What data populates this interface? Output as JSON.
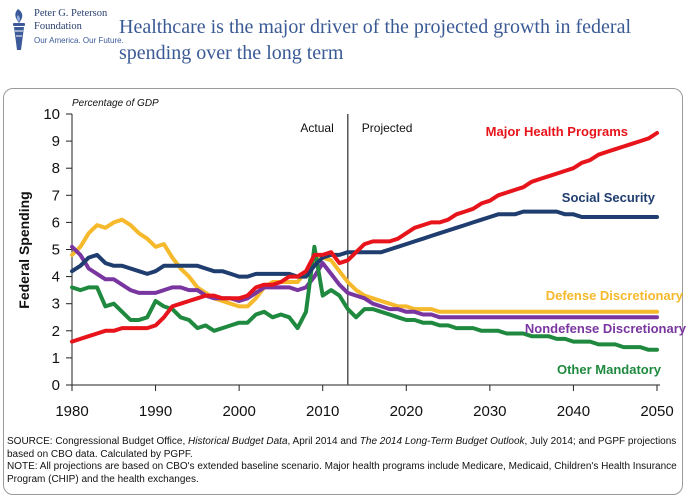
{
  "header": {
    "logo_name": "Peter G. Peterson",
    "logo_sub": "Foundation",
    "logo_tagline": "Our America. Our Future.",
    "title": "Healthcare is the major driver of the projected growth in federal spending over the long term"
  },
  "footer": {
    "source_prefix": "SOURCE: Congressional Budget Office, ",
    "source_title1": "Historical Budget Data",
    "source_mid": ", April 2014 and ",
    "source_title2": "The 2014 Long-Term Budget Outlook",
    "source_suffix": ", July 2014; and PGPF projections based on CBO data. Calculated by PGPF.",
    "note": "NOTE: All projections are based on CBO's extended baseline scenario. Major health programs include Medicare, Medicaid, Children's Health Insurance Program (CHIP) and the health exchanges."
  },
  "colors": {
    "health": "#e8141b",
    "social": "#1f3d6e",
    "defense": "#f5b92b",
    "nondefense": "#7a36a0",
    "other": "#1f8a3f",
    "title": "#3a5a95"
  },
  "chart_data": {
    "type": "line",
    "title": "Healthcare is the major driver of the projected growth in federal spending over the long term",
    "ylabel": "Federal Spending",
    "unit_label": "Percentage of GDP",
    "xlabel": "",
    "xlim": [
      1980,
      2050
    ],
    "ylim": [
      0,
      10
    ],
    "xticks": [
      1980,
      1990,
      2000,
      2010,
      2020,
      2030,
      2040,
      2050
    ],
    "yticks": [
      0,
      1,
      2,
      3,
      4,
      5,
      6,
      7,
      8,
      9,
      10
    ],
    "grid": false,
    "divider_year": 2013,
    "annotations": [
      "Actual",
      "Projected"
    ],
    "series": [
      {
        "name": "Major Health Programs",
        "color_key": "health",
        "x": [
          1980,
          1981,
          1982,
          1983,
          1984,
          1985,
          1986,
          1987,
          1988,
          1989,
          1990,
          1991,
          1992,
          1993,
          1994,
          1995,
          1996,
          1997,
          1998,
          1999,
          2000,
          2001,
          2002,
          2003,
          2004,
          2005,
          2006,
          2007,
          2008,
          2009,
          2010,
          2011,
          2012,
          2013,
          2014,
          2015,
          2016,
          2017,
          2018,
          2019,
          2020,
          2021,
          2022,
          2023,
          2024,
          2025,
          2026,
          2027,
          2028,
          2029,
          2030,
          2031,
          2032,
          2033,
          2034,
          2035,
          2036,
          2037,
          2038,
          2039,
          2040,
          2041,
          2042,
          2043,
          2044,
          2045,
          2046,
          2047,
          2048,
          2049,
          2050
        ],
        "values": [
          1.6,
          1.7,
          1.8,
          1.9,
          2.0,
          2.0,
          2.1,
          2.1,
          2.1,
          2.1,
          2.2,
          2.5,
          2.9,
          3.0,
          3.1,
          3.2,
          3.3,
          3.3,
          3.2,
          3.2,
          3.2,
          3.3,
          3.6,
          3.7,
          3.7,
          3.8,
          4.0,
          4.0,
          4.2,
          4.8,
          4.8,
          4.9,
          4.5,
          4.6,
          4.9,
          5.2,
          5.3,
          5.3,
          5.3,
          5.4,
          5.6,
          5.8,
          5.9,
          6.0,
          6.0,
          6.1,
          6.3,
          6.4,
          6.5,
          6.7,
          6.8,
          7.0,
          7.1,
          7.2,
          7.3,
          7.5,
          7.6,
          7.7,
          7.8,
          7.9,
          8.0,
          8.2,
          8.3,
          8.5,
          8.6,
          8.7,
          8.8,
          8.9,
          9.0,
          9.1,
          9.3
        ]
      },
      {
        "name": "Social Security",
        "color_key": "social",
        "x": [
          1980,
          1981,
          1982,
          1983,
          1984,
          1985,
          1986,
          1987,
          1988,
          1989,
          1990,
          1991,
          1992,
          1993,
          1994,
          1995,
          1996,
          1997,
          1998,
          1999,
          2000,
          2001,
          2002,
          2003,
          2004,
          2005,
          2006,
          2007,
          2008,
          2009,
          2010,
          2011,
          2012,
          2013,
          2014,
          2015,
          2016,
          2017,
          2018,
          2019,
          2020,
          2021,
          2022,
          2023,
          2024,
          2025,
          2026,
          2027,
          2028,
          2029,
          2030,
          2031,
          2032,
          2033,
          2034,
          2035,
          2036,
          2037,
          2038,
          2039,
          2040,
          2041,
          2042,
          2043,
          2044,
          2045,
          2046,
          2047,
          2048,
          2049,
          2050
        ],
        "values": [
          4.2,
          4.4,
          4.7,
          4.8,
          4.5,
          4.4,
          4.4,
          4.3,
          4.2,
          4.1,
          4.2,
          4.4,
          4.4,
          4.4,
          4.4,
          4.4,
          4.3,
          4.2,
          4.2,
          4.1,
          4.0,
          4.0,
          4.1,
          4.1,
          4.1,
          4.1,
          4.1,
          4.0,
          4.0,
          4.4,
          4.7,
          4.8,
          4.8,
          4.9,
          4.9,
          4.9,
          4.9,
          4.9,
          5.0,
          5.1,
          5.2,
          5.3,
          5.4,
          5.5,
          5.6,
          5.7,
          5.8,
          5.9,
          6.0,
          6.1,
          6.2,
          6.3,
          6.3,
          6.3,
          6.4,
          6.4,
          6.4,
          6.4,
          6.4,
          6.3,
          6.3,
          6.2,
          6.2,
          6.2,
          6.2,
          6.2,
          6.2,
          6.2,
          6.2,
          6.2,
          6.2
        ]
      },
      {
        "name": "Defense Discretionary",
        "color_key": "defense",
        "x": [
          1980,
          1981,
          1982,
          1983,
          1984,
          1985,
          1986,
          1987,
          1988,
          1989,
          1990,
          1991,
          1992,
          1993,
          1994,
          1995,
          1996,
          1997,
          1998,
          1999,
          2000,
          2001,
          2002,
          2003,
          2004,
          2005,
          2006,
          2007,
          2008,
          2009,
          2010,
          2011,
          2012,
          2013,
          2014,
          2015,
          2016,
          2017,
          2018,
          2019,
          2020,
          2021,
          2022,
          2023,
          2024,
          2025,
          2026,
          2027,
          2028,
          2029,
          2030,
          2031,
          2032,
          2033,
          2034,
          2035,
          2036,
          2037,
          2038,
          2039,
          2040,
          2041,
          2042,
          2043,
          2044,
          2045,
          2046,
          2047,
          2048,
          2049,
          2050
        ],
        "values": [
          4.8,
          5.1,
          5.6,
          5.9,
          5.8,
          6.0,
          6.1,
          5.9,
          5.6,
          5.4,
          5.1,
          5.2,
          4.7,
          4.3,
          4.0,
          3.6,
          3.4,
          3.2,
          3.1,
          3.0,
          2.9,
          2.9,
          3.2,
          3.6,
          3.8,
          3.8,
          3.8,
          3.8,
          4.2,
          4.6,
          4.7,
          4.6,
          4.2,
          3.8,
          3.5,
          3.3,
          3.2,
          3.1,
          3.0,
          2.9,
          2.9,
          2.8,
          2.8,
          2.8,
          2.7,
          2.7,
          2.7,
          2.7,
          2.7,
          2.7,
          2.7,
          2.7,
          2.7,
          2.7,
          2.7,
          2.7,
          2.7,
          2.7,
          2.7,
          2.7,
          2.7,
          2.7,
          2.7,
          2.7,
          2.7,
          2.7,
          2.7,
          2.7,
          2.7,
          2.7,
          2.7
        ]
      },
      {
        "name": "Nondefense Discretionary",
        "color_key": "nondefense",
        "x": [
          1980,
          1981,
          1982,
          1983,
          1984,
          1985,
          1986,
          1987,
          1988,
          1989,
          1990,
          1991,
          1992,
          1993,
          1994,
          1995,
          1996,
          1997,
          1998,
          1999,
          2000,
          2001,
          2002,
          2003,
          2004,
          2005,
          2006,
          2007,
          2008,
          2009,
          2010,
          2011,
          2012,
          2013,
          2014,
          2015,
          2016,
          2017,
          2018,
          2019,
          2020,
          2021,
          2022,
          2023,
          2024,
          2025,
          2026,
          2027,
          2028,
          2029,
          2030,
          2031,
          2032,
          2033,
          2034,
          2035,
          2036,
          2037,
          2038,
          2039,
          2040,
          2041,
          2042,
          2043,
          2044,
          2045,
          2046,
          2047,
          2048,
          2049,
          2050
        ],
        "values": [
          5.1,
          4.8,
          4.3,
          4.1,
          3.9,
          3.9,
          3.7,
          3.5,
          3.4,
          3.4,
          3.4,
          3.5,
          3.6,
          3.6,
          3.5,
          3.5,
          3.3,
          3.2,
          3.2,
          3.2,
          3.1,
          3.2,
          3.4,
          3.6,
          3.6,
          3.6,
          3.6,
          3.5,
          3.6,
          4.0,
          4.5,
          4.1,
          3.7,
          3.4,
          3.3,
          3.2,
          3.0,
          2.9,
          2.8,
          2.8,
          2.7,
          2.7,
          2.6,
          2.6,
          2.5,
          2.5,
          2.5,
          2.5,
          2.5,
          2.5,
          2.5,
          2.5,
          2.5,
          2.5,
          2.5,
          2.5,
          2.5,
          2.5,
          2.5,
          2.5,
          2.5,
          2.5,
          2.5,
          2.5,
          2.5,
          2.5,
          2.5,
          2.5,
          2.5,
          2.5,
          2.5
        ]
      },
      {
        "name": "Other Mandatory",
        "color_key": "other",
        "x": [
          1980,
          1981,
          1982,
          1983,
          1984,
          1985,
          1986,
          1987,
          1988,
          1989,
          1990,
          1991,
          1992,
          1993,
          1994,
          1995,
          1996,
          1997,
          1998,
          1999,
          2000,
          2001,
          2002,
          2003,
          2004,
          2005,
          2006,
          2007,
          2008,
          2009,
          2010,
          2011,
          2012,
          2013,
          2014,
          2015,
          2016,
          2017,
          2018,
          2019,
          2020,
          2021,
          2022,
          2023,
          2024,
          2025,
          2026,
          2027,
          2028,
          2029,
          2030,
          2031,
          2032,
          2033,
          2034,
          2035,
          2036,
          2037,
          2038,
          2039,
          2040,
          2041,
          2042,
          2043,
          2044,
          2045,
          2046,
          2047,
          2048,
          2049,
          2050
        ],
        "values": [
          3.6,
          3.5,
          3.6,
          3.6,
          2.9,
          3.0,
          2.7,
          2.4,
          2.4,
          2.5,
          3.1,
          2.9,
          2.8,
          2.5,
          2.4,
          2.1,
          2.2,
          2.0,
          2.1,
          2.2,
          2.3,
          2.3,
          2.6,
          2.7,
          2.5,
          2.6,
          2.5,
          2.1,
          2.7,
          5.1,
          3.3,
          3.5,
          3.3,
          2.8,
          2.5,
          2.8,
          2.8,
          2.7,
          2.6,
          2.5,
          2.4,
          2.4,
          2.3,
          2.3,
          2.2,
          2.2,
          2.1,
          2.1,
          2.1,
          2.0,
          2.0,
          2.0,
          1.9,
          1.9,
          1.9,
          1.8,
          1.8,
          1.8,
          1.7,
          1.7,
          1.6,
          1.6,
          1.6,
          1.5,
          1.5,
          1.5,
          1.4,
          1.4,
          1.4,
          1.3,
          1.3
        ]
      }
    ]
  }
}
